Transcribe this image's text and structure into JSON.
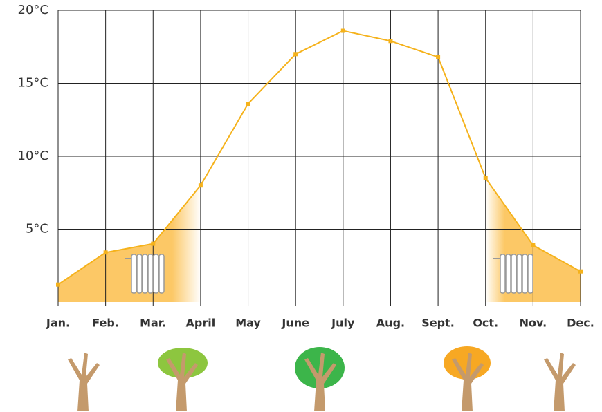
{
  "chart_data": {
    "type": "line",
    "categories": [
      "Jan.",
      "Feb.",
      "Mar.",
      "April",
      "May",
      "June",
      "July",
      "Aug.",
      "Sept.",
      "Oct.",
      "Nov.",
      "Dec."
    ],
    "series": [
      {
        "color": "#f5b21b",
        "values": [
          1.2,
          3.4,
          4.0,
          8.0,
          13.6,
          17.0,
          18.6,
          17.9,
          16.8,
          8.5,
          3.9,
          2.1
        ]
      }
    ],
    "ylim": [
      0,
      20
    ],
    "yticks": [
      {
        "value": 5,
        "label": "5°C"
      },
      {
        "value": 10,
        "label": "10°C"
      },
      {
        "value": 15,
        "label": "15°C"
      },
      {
        "value": 20,
        "label": "20°C"
      }
    ],
    "grid": true
  }
}
